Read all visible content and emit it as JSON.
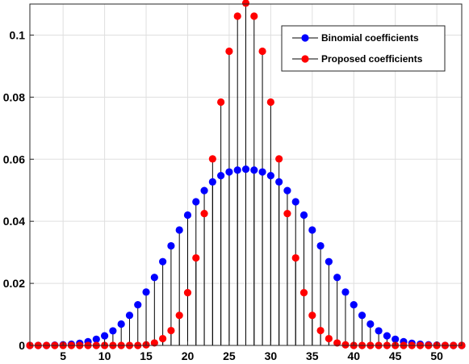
{
  "chart_data": {
    "type": "stem",
    "title": "",
    "xlabel": "",
    "ylabel": "",
    "xlim": [
      1,
      53
    ],
    "ylim": [
      0,
      0.11
    ],
    "xticks": [
      5,
      10,
      15,
      20,
      25,
      30,
      35,
      40,
      45,
      50
    ],
    "xtick_labels": [
      "5",
      "10",
      "15",
      "20",
      "25",
      "30",
      "35",
      "40",
      "45",
      "50"
    ],
    "yticks": [
      0,
      0.02,
      0.04,
      0.06,
      0.08,
      0.1
    ],
    "ytick_labels": [
      "0",
      "0.02",
      "0.04",
      "0.06",
      "0.08",
      "0.1"
    ],
    "grid": true,
    "legend_position": "top-right",
    "x": [
      1,
      2,
      3,
      4,
      5,
      6,
      7,
      8,
      9,
      10,
      11,
      12,
      13,
      14,
      15,
      16,
      17,
      18,
      19,
      20,
      21,
      22,
      23,
      24,
      25,
      26,
      27,
      28,
      29,
      30,
      31,
      32,
      33,
      34,
      35,
      36,
      37,
      38,
      39,
      40,
      41,
      42,
      43,
      44,
      45,
      46,
      47,
      48,
      49,
      50,
      51,
      52,
      53
    ],
    "series": [
      {
        "name": "Binomial coefficients",
        "color": "#0000ff",
        "values": [
          0,
          0,
          0,
          0.0001,
          0.0002,
          0.0004,
          0.0007,
          0.0012,
          0.002,
          0.0031,
          0.0047,
          0.0069,
          0.0097,
          0.0131,
          0.0172,
          0.0219,
          0.027,
          0.0321,
          0.0372,
          0.042,
          0.0463,
          0.0499,
          0.0527,
          0.0547,
          0.0559,
          0.0565,
          0.0568,
          0.0565,
          0.0559,
          0.0547,
          0.0527,
          0.0499,
          0.0463,
          0.042,
          0.0372,
          0.0321,
          0.027,
          0.0219,
          0.0172,
          0.0131,
          0.0097,
          0.0069,
          0.0047,
          0.0031,
          0.002,
          0.0012,
          0.0007,
          0.0004,
          0.0002,
          0.0001,
          0,
          0,
          0
        ]
      },
      {
        "name": "Proposed coefficients",
        "color": "#ff0000",
        "values": [
          0,
          0,
          0,
          0,
          0,
          0,
          0,
          0,
          0,
          0,
          0,
          0,
          0,
          0,
          0.0002,
          0.0008,
          0.0022,
          0.0048,
          0.0097,
          0.017,
          0.0282,
          0.0425,
          0.0601,
          0.0784,
          0.0948,
          0.1061,
          0.1103,
          0.1061,
          0.0948,
          0.0784,
          0.0601,
          0.0425,
          0.0282,
          0.017,
          0.0097,
          0.0048,
          0.0022,
          0.0008,
          0.0002,
          0,
          0,
          0,
          0,
          0,
          0,
          0,
          0,
          0,
          0,
          0,
          0,
          0,
          0
        ]
      }
    ]
  }
}
